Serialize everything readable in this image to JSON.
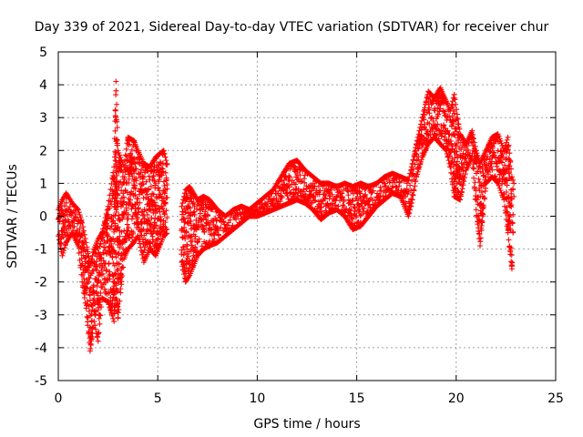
{
  "chart_data": {
    "type": "scatter",
    "title": "Day 339 of 2021, Sidereal Day-to-day VTEC variation (SDTVAR) for receiver chur",
    "xlabel": "GPS time / hours",
    "ylabel": "SDTVAR / TECUs",
    "xlim": [
      0,
      25
    ],
    "ylim": [
      -5,
      5
    ],
    "xticks": [
      0,
      5,
      10,
      15,
      20,
      25
    ],
    "yticks": [
      -5,
      -4,
      -3,
      -2,
      -1,
      0,
      1,
      2,
      3,
      4,
      5
    ],
    "xtick_labels": [
      "0",
      "5",
      "10",
      "15",
      "20",
      "25"
    ],
    "ytick_labels": [
      "-5",
      "-4",
      "-3",
      "-2",
      "-1",
      "0",
      "1",
      "2",
      "3",
      "4",
      "5"
    ],
    "grid": true,
    "marker": "+",
    "color": "#ff0000",
    "series": [
      {
        "name": "SDTVAR",
        "envelope": [
          [
            0.0,
            -0.6,
            0.2
          ],
          [
            0.2,
            -1.2,
            0.5
          ],
          [
            0.4,
            -0.8,
            0.7
          ],
          [
            0.7,
            -0.5,
            0.4
          ],
          [
            1.0,
            -0.9,
            0.2
          ],
          [
            1.2,
            -2.0,
            -0.2
          ],
          [
            1.4,
            -2.8,
            -0.8
          ],
          [
            1.6,
            -4.1,
            -1.5
          ],
          [
            1.8,
            -3.2,
            -1.0
          ],
          [
            2.0,
            -3.8,
            -0.7
          ],
          [
            2.2,
            -2.5,
            -0.5
          ],
          [
            2.5,
            -2.6,
            0.3
          ],
          [
            2.8,
            -3.2,
            1.5
          ],
          [
            2.9,
            -2.5,
            4.1
          ],
          [
            3.0,
            -3.1,
            2.0
          ],
          [
            3.3,
            -1.3,
            1.5
          ],
          [
            3.5,
            -1.0,
            2.4
          ],
          [
            3.8,
            -0.8,
            2.3
          ],
          [
            4.0,
            -0.6,
            2.0
          ],
          [
            4.3,
            -1.4,
            1.6
          ],
          [
            4.6,
            -1.0,
            1.5
          ],
          [
            4.9,
            -1.2,
            1.8
          ],
          [
            5.1,
            -0.9,
            1.9
          ],
          [
            5.3,
            -0.6,
            2.0
          ],
          [
            5.5,
            -0.5,
            1.5
          ],
          [
            6.2,
            -1.4,
            0.3
          ],
          [
            6.4,
            -2.0,
            0.8
          ],
          [
            6.6,
            -1.8,
            0.9
          ],
          [
            6.8,
            -1.5,
            0.7
          ],
          [
            7.0,
            -1.2,
            0.5
          ],
          [
            7.3,
            -1.0,
            0.6
          ],
          [
            7.6,
            -0.9,
            0.5
          ],
          [
            8.0,
            -0.8,
            0.2
          ],
          [
            8.4,
            -0.6,
            0.0
          ],
          [
            8.8,
            -0.4,
            0.2
          ],
          [
            9.2,
            -0.2,
            0.3
          ],
          [
            9.6,
            0.0,
            0.2
          ],
          [
            10.0,
            0.0,
            0.4
          ],
          [
            10.4,
            0.1,
            0.6
          ],
          [
            10.8,
            0.2,
            0.8
          ],
          [
            11.2,
            0.3,
            1.2
          ],
          [
            11.6,
            0.4,
            1.6
          ],
          [
            12.0,
            0.5,
            1.7
          ],
          [
            12.4,
            0.4,
            1.4
          ],
          [
            12.8,
            0.2,
            1.2
          ],
          [
            13.2,
            -0.1,
            1.0
          ],
          [
            13.6,
            0.1,
            1.0
          ],
          [
            14.0,
            0.2,
            0.9
          ],
          [
            14.4,
            0.0,
            1.0
          ],
          [
            14.8,
            -0.4,
            0.9
          ],
          [
            15.2,
            -0.3,
            1.0
          ],
          [
            15.6,
            0.0,
            0.9
          ],
          [
            16.0,
            0.3,
            1.0
          ],
          [
            16.4,
            0.5,
            1.2
          ],
          [
            16.8,
            0.7,
            1.3
          ],
          [
            17.2,
            0.6,
            1.2
          ],
          [
            17.6,
            0.0,
            1.1
          ],
          [
            17.8,
            0.5,
            1.6
          ],
          [
            18.0,
            1.2,
            2.2
          ],
          [
            18.3,
            1.8,
            3.0
          ],
          [
            18.6,
            2.2,
            3.8
          ],
          [
            18.9,
            2.4,
            3.6
          ],
          [
            19.2,
            2.2,
            3.9
          ],
          [
            19.5,
            2.0,
            3.5
          ],
          [
            19.7,
            1.5,
            3.2
          ],
          [
            19.9,
            0.6,
            3.7
          ],
          [
            20.2,
            0.5,
            2.5
          ],
          [
            20.5,
            1.4,
            2.2
          ],
          [
            20.8,
            1.8,
            2.6
          ],
          [
            21.0,
            0.2,
            2.0
          ],
          [
            21.2,
            -0.9,
            1.6
          ],
          [
            21.5,
            1.0,
            2.0
          ],
          [
            21.8,
            1.2,
            2.4
          ],
          [
            22.1,
            1.0,
            2.5
          ],
          [
            22.4,
            0.5,
            2.0
          ],
          [
            22.6,
            -0.5,
            2.4
          ],
          [
            22.8,
            -1.6,
            1.2
          ],
          [
            22.9,
            0.6,
            1.0
          ]
        ]
      }
    ]
  }
}
